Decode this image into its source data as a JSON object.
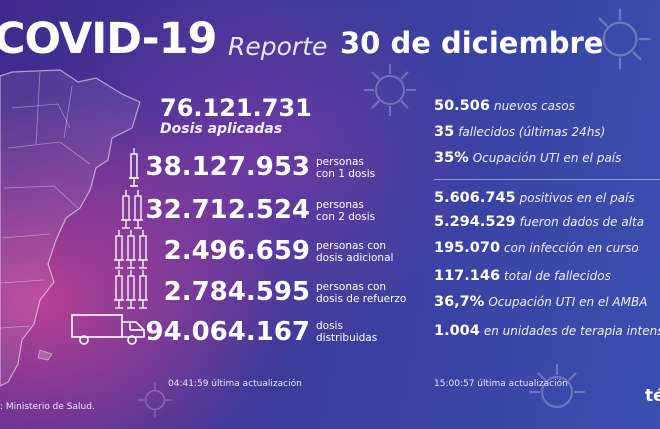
{
  "header": {
    "title": "COVID-19",
    "reporte_label": "Reporte",
    "date": "30 de diciembre"
  },
  "vaccination": {
    "total_value": "76.121.731",
    "total_label": "Dosis aplicadas",
    "rows": [
      {
        "value": "38.127.953",
        "label_1": "personas",
        "label_2": "con 1 dosis",
        "icon": "syringe-1-icon"
      },
      {
        "value": "32.712.524",
        "label_1": "personas",
        "label_2": "con 2 dosis",
        "icon": "syringe-2-icon"
      },
      {
        "value": "2.496.659",
        "label_1": "personas con",
        "label_2": "dosis adicional",
        "icon": "syringe-3-icon"
      },
      {
        "value": "2.784.595",
        "label_1": "personas con",
        "label_2": "dosis de refuerzo",
        "icon": "syringe-4-icon"
      },
      {
        "value": "94.064.167",
        "label_1": "dosis",
        "label_2": "distribuidas",
        "icon": "truck-icon"
      }
    ],
    "update_time": "04:41:59",
    "update_label": "última actualización"
  },
  "cases": {
    "daily": [
      {
        "value": "50.506",
        "label": "nuevos casos",
        "percent": false
      },
      {
        "value": "35",
        "label": "fallecidos (últimas 24hs)",
        "percent": false
      },
      {
        "value": "35",
        "label": "Ocupación UTI en el país",
        "percent": true
      }
    ],
    "totals": [
      {
        "value": "5.606.745",
        "label": "positivos en el país",
        "percent": false
      },
      {
        "value": "5.294.529",
        "label": "fueron dados de alta",
        "percent": false
      },
      {
        "value": "195.070",
        "label": "con infección en curso",
        "percent": false
      },
      {
        "value": "117.146",
        "label": "total de fallecidos",
        "percent": false
      },
      {
        "value": "36,7",
        "label": "Ocupación UTI en el AMBA",
        "percent": true
      },
      {
        "value": "1.004",
        "label": "en unidades de terapia intensiva",
        "percent": false
      }
    ],
    "update_time": "15:00:57",
    "update_label": "última actualización"
  },
  "footer": {
    "source": ": Ministerio de Salud.",
    "logo": "té"
  },
  "colors": {
    "bg_left": "#3f2a8c",
    "bg_right": "#3a4fb0",
    "pink_glow": "#e24696"
  }
}
